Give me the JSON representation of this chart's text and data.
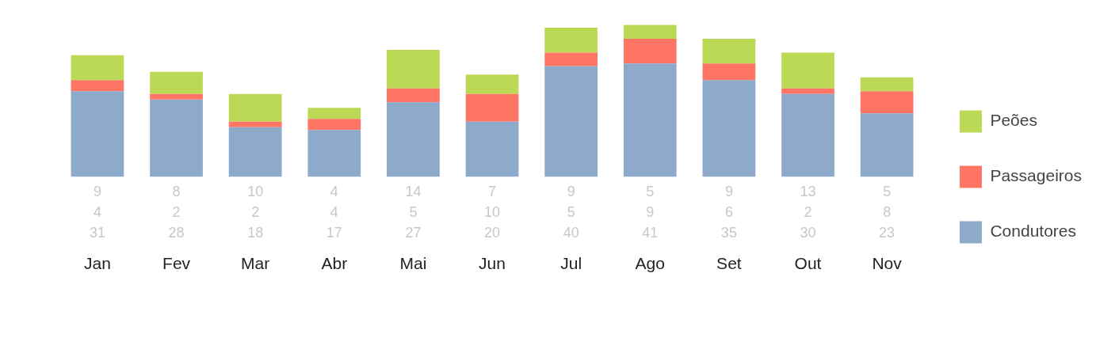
{
  "chart_data": {
    "type": "bar",
    "stacked": true,
    "data_labels": true,
    "legend": "right",
    "grid": false,
    "categories": [
      "Jan",
      "Fev",
      "Mar",
      "Abr",
      "Mai",
      "Jun",
      "Jul",
      "Ago",
      "Set",
      "Out",
      "Nov"
    ],
    "series": [
      {
        "name": "Condutores",
        "color": "#8eaacb",
        "values": [
          31,
          28,
          18,
          17,
          27,
          20,
          40,
          41,
          35,
          30,
          23
        ]
      },
      {
        "name": "Passageiros",
        "color": "#fe7565",
        "values": [
          4,
          2,
          2,
          4,
          5,
          10,
          5,
          9,
          6,
          2,
          8
        ]
      },
      {
        "name": "Peões",
        "color": "#bcd955",
        "values": [
          9,
          8,
          10,
          4,
          14,
          7,
          9,
          5,
          9,
          13,
          5
        ]
      }
    ]
  }
}
